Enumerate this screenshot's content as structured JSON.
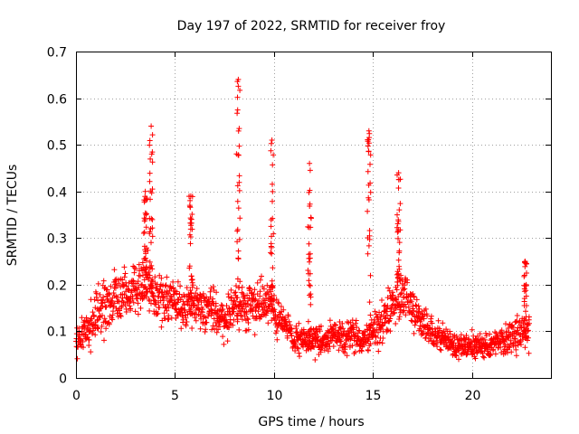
{
  "chart_data": {
    "type": "scatter",
    "title": "Day 197 of 2022, SRMTID for receiver froy",
    "xlabel": "GPS time / hours",
    "ylabel": "SRMTID / TECUs",
    "xlim": [
      0,
      24
    ],
    "ylim": [
      0,
      0.7
    ],
    "xticks": [
      0,
      5,
      10,
      15,
      20
    ],
    "xtick_labels": [
      "0",
      "5",
      "10",
      "15",
      "20"
    ],
    "yticks": [
      0,
      0.1,
      0.2,
      0.3,
      0.4,
      0.5,
      0.6,
      0.7
    ],
    "ytick_labels": [
      "0",
      "0.1",
      "0.2",
      "0.3",
      "0.4",
      "0.5",
      "0.6",
      "0.7"
    ],
    "grid": true,
    "marker": "+",
    "color": "#ff0000",
    "series": [
      {
        "name": "SRMTID",
        "profile_hours": [
          0,
          0.5,
          1.0,
          1.5,
          2.0,
          2.5,
          3.0,
          3.5,
          4.0,
          4.5,
          5.0,
          5.5,
          6.0,
          6.5,
          7.0,
          7.5,
          8.0,
          8.5,
          9.0,
          9.5,
          10.0,
          10.5,
          11.0,
          11.5,
          12.0,
          12.5,
          13.0,
          13.5,
          14.0,
          14.5,
          15.0,
          15.5,
          16.0,
          16.5,
          17.0,
          17.5,
          18.0,
          18.5,
          19.0,
          19.5,
          20.0,
          20.5,
          21.0,
          21.5,
          22.0,
          22.5,
          22.9
        ],
        "profile_median": [
          0.08,
          0.1,
          0.14,
          0.15,
          0.17,
          0.18,
          0.19,
          0.2,
          0.18,
          0.17,
          0.16,
          0.15,
          0.16,
          0.15,
          0.14,
          0.12,
          0.16,
          0.15,
          0.15,
          0.16,
          0.14,
          0.12,
          0.08,
          0.08,
          0.08,
          0.08,
          0.09,
          0.09,
          0.09,
          0.08,
          0.1,
          0.12,
          0.16,
          0.18,
          0.14,
          0.12,
          0.1,
          0.09,
          0.07,
          0.07,
          0.07,
          0.07,
          0.07,
          0.08,
          0.09,
          0.1,
          0.09
        ],
        "profile_spread": [
          0.06,
          0.06,
          0.07,
          0.08,
          0.08,
          0.08,
          0.08,
          0.08,
          0.07,
          0.07,
          0.07,
          0.07,
          0.07,
          0.07,
          0.06,
          0.06,
          0.07,
          0.07,
          0.07,
          0.07,
          0.07,
          0.05,
          0.04,
          0.04,
          0.04,
          0.04,
          0.05,
          0.05,
          0.05,
          0.04,
          0.05,
          0.06,
          0.07,
          0.07,
          0.06,
          0.05,
          0.04,
          0.04,
          0.04,
          0.04,
          0.04,
          0.04,
          0.04,
          0.04,
          0.05,
          0.05,
          0.05
        ],
        "spikes": [
          {
            "x": 3.5,
            "peak": 0.4
          },
          {
            "x": 3.8,
            "peak": 0.54
          },
          {
            "x": 5.8,
            "peak": 0.39
          },
          {
            "x": 8.2,
            "peak": 0.64
          },
          {
            "x": 9.9,
            "peak": 0.51
          },
          {
            "x": 11.8,
            "peak": 0.46
          },
          {
            "x": 14.8,
            "peak": 0.53
          },
          {
            "x": 16.3,
            "peak": 0.44
          },
          {
            "x": 22.7,
            "peak": 0.25
          }
        ]
      }
    ]
  }
}
